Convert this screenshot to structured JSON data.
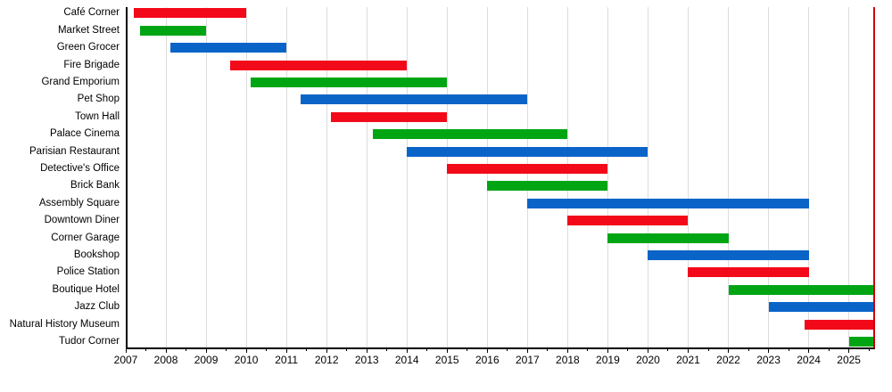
{
  "chart_data": {
    "type": "gantt",
    "title": "",
    "x_axis": {
      "min": 2007,
      "max": 2025.63,
      "tick_labels": [
        "2007",
        "2008",
        "2009",
        "2010",
        "2011",
        "2012",
        "2013",
        "2014",
        "2015",
        "2016",
        "2017",
        "2018",
        "2019",
        "2020",
        "2021",
        "2022",
        "2023",
        "2024",
        "2025"
      ],
      "major_tick_interval": 1,
      "minor_tick_interval": 0.5,
      "gridlines": true
    },
    "current_marker": {
      "value": 2025.63,
      "color": "#cc0000"
    },
    "colors": {
      "red": "#f20a1a",
      "green": "#00a514",
      "blue": "#0a64c8"
    },
    "rows": [
      {
        "label": "Café Corner",
        "color": "red",
        "start": 2007.2,
        "end": 2010
      },
      {
        "label": "Market Street",
        "color": "green",
        "start": 2007.35,
        "end": 2009
      },
      {
        "label": "Green Grocer",
        "color": "blue",
        "start": 2008.1,
        "end": 2011
      },
      {
        "label": "Fire Brigade",
        "color": "red",
        "start": 2009.6,
        "end": 2014
      },
      {
        "label": "Grand Emporium",
        "color": "green",
        "start": 2010.1,
        "end": 2015
      },
      {
        "label": "Pet Shop",
        "color": "blue",
        "start": 2011.35,
        "end": 2017
      },
      {
        "label": "Town Hall",
        "color": "red",
        "start": 2012.1,
        "end": 2015
      },
      {
        "label": "Palace Cinema",
        "color": "green",
        "start": 2013.15,
        "end": 2018
      },
      {
        "label": "Parisian Restaurant",
        "color": "blue",
        "start": 2014,
        "end": 2020
      },
      {
        "label": "Detective's Office",
        "color": "red",
        "start": 2015,
        "end": 2019
      },
      {
        "label": "Brick Bank",
        "color": "green",
        "start": 2016,
        "end": 2019
      },
      {
        "label": "Assembly Square",
        "color": "blue",
        "start": 2017,
        "end": 2024
      },
      {
        "label": "Downtown Diner",
        "color": "red",
        "start": 2018,
        "end": 2021
      },
      {
        "label": "Corner Garage",
        "color": "green",
        "start": 2019,
        "end": 2022
      },
      {
        "label": "Bookshop",
        "color": "blue",
        "start": 2020,
        "end": 2024
      },
      {
        "label": "Police Station",
        "color": "red",
        "start": 2021,
        "end": 2024
      },
      {
        "label": "Boutique Hotel",
        "color": "green",
        "start": 2022,
        "end": "present"
      },
      {
        "label": "Jazz Club",
        "color": "blue",
        "start": 2023,
        "end": "present"
      },
      {
        "label": "Natural History Museum",
        "color": "red",
        "start": 2023.9,
        "end": "present"
      },
      {
        "label": "Tudor Corner",
        "color": "green",
        "start": 2025,
        "end": "present"
      }
    ]
  }
}
